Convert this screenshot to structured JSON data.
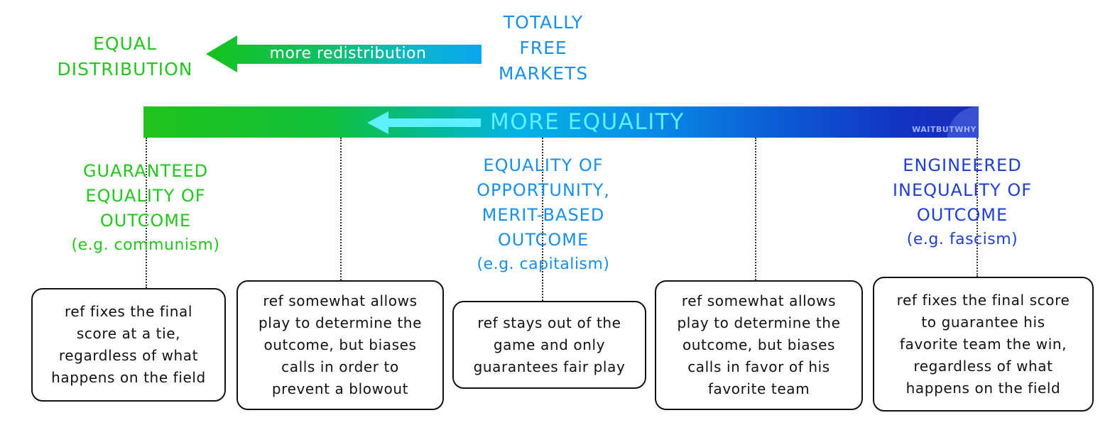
{
  "top": {
    "left_label": [
      "EQUAL",
      "DISTRIBUTION"
    ],
    "right_label": [
      "TOTALLY",
      "FREE",
      "MARKETS"
    ],
    "arrow_label": "more redistribution"
  },
  "bar": {
    "label": "MORE EQUALITY",
    "watermark": "WAITBUTWHY"
  },
  "categories": {
    "left": {
      "lines": [
        "GUARANTEED",
        "EQUALITY OF",
        "OUTCOME"
      ],
      "example": "(e.g. communism)"
    },
    "middle": {
      "lines": [
        "EQUALITY OF",
        "OPPORTUNITY,",
        "MERIT-BASED",
        "OUTCOME"
      ],
      "example": "(e.g. capitalism)"
    },
    "right": {
      "lines": [
        "ENGINEERED",
        "INEQUALITY OF",
        "OUTCOME"
      ],
      "example": "(e.g. fascism)"
    }
  },
  "boxes": [
    {
      "lines": [
        "ref fixes the final",
        "score at a tie,",
        "regardless of what",
        "happens on the field"
      ]
    },
    {
      "lines": [
        "ref somewhat allows",
        "play to determine the",
        "outcome, but biases",
        "calls in order to",
        "prevent a blowout"
      ]
    },
    {
      "lines": [
        "ref stays out of the",
        "game and only",
        "guarantees fair play"
      ]
    },
    {
      "lines": [
        "ref somewhat allows",
        "play to determine the",
        "outcome, but biases",
        "calls in favor of his",
        "favorite team"
      ]
    },
    {
      "lines": [
        "ref fixes the final score",
        "to guarantee his",
        "favorite team the win,",
        "regardless of what",
        "happens on the field"
      ]
    }
  ],
  "colors": {
    "green": "#22c61f",
    "light_blue": "#1a8fe8",
    "dark_blue": "#1f3fd4",
    "cyan_arrow": "#5ff0ff"
  }
}
